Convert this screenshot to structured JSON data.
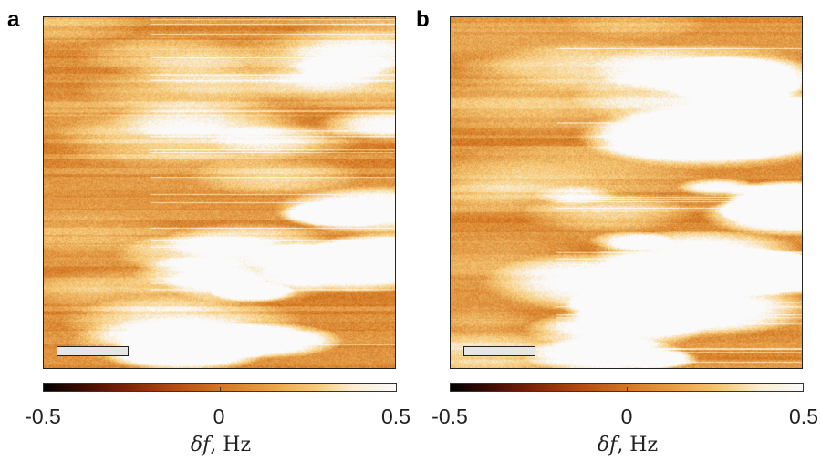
{
  "panels": [
    {
      "label": "a",
      "white_fraction_hint": "lower-right"
    },
    {
      "label": "b",
      "white_fraction_hint": "right"
    }
  ],
  "colorbar": {
    "min": -0.5,
    "max": 0.5,
    "ticks": [
      "-0.5",
      "0",
      "0.5"
    ],
    "label_symbol": "δf",
    "label_unit": ", Hz",
    "colormap": [
      "#000000",
      "#7a1e05",
      "#d4761f",
      "#f7cd7c",
      "#fafafa"
    ]
  }
}
